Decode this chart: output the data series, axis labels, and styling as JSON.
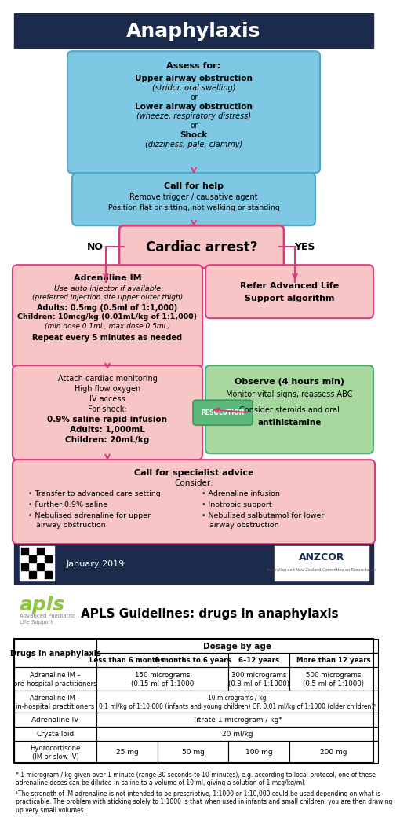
{
  "title": "Anaphylaxis",
  "title_bg": "#1c2b4b",
  "title_color": "#ffffff",
  "blue_bg": "#7ec8e3",
  "blue_border": "#4aa8c8",
  "pink_bg": "#f7c5c5",
  "pink_border": "#d63d7a",
  "green_bg": "#a8d8a0",
  "green_border": "#4cae6e",
  "green_res_bg": "#5cb87a",
  "footer_bg": "#1c2b4b",
  "arrow_color": "#d63d7a",
  "apls_green": "#8dc63f",
  "footnote1": "* 1 microgram / kg given over 1 minute (range 30 seconds to 10 minutes), e.g. according to local protocol, one of these\nadrenaline doses can be diluted in saline to a volume of 10 ml, giving a solution of 1 mcg/kg/ml.",
  "footnote2": "¹The strength of IM adrenaline is not intended to be prescriptive, 1:1000 or 1:10,000 could be used depending on what is\npracticable. The problem with sticking solely to 1:1000 is that when used in infants and small children, you are then drawing\nup very small volumes."
}
